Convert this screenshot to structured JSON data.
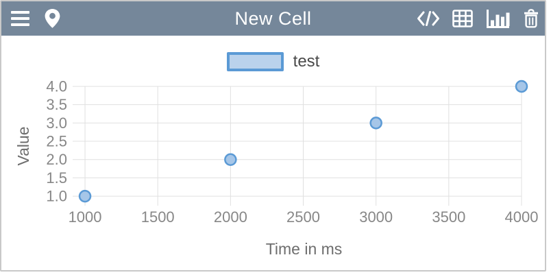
{
  "header": {
    "title": "New Cell",
    "background": "#75879A",
    "icon_color": "#ffffff",
    "left_icons": [
      {
        "name": "menu-icon"
      },
      {
        "name": "location-pin-icon"
      }
    ],
    "right_icons": [
      {
        "name": "code-icon"
      },
      {
        "name": "table-icon"
      },
      {
        "name": "bar-chart-icon"
      },
      {
        "name": "trash-icon"
      }
    ]
  },
  "legend": {
    "label": "test",
    "swatch_fill": "#bad2ec",
    "swatch_border": "#5b9ad5"
  },
  "chart_data": {
    "type": "scatter",
    "title": "",
    "xlabel": "Time in ms",
    "ylabel": "Value",
    "series": [
      {
        "name": "test",
        "x": [
          1000,
          2000,
          3000,
          4000
        ],
        "y": [
          1.0,
          2.0,
          3.0,
          4.0
        ]
      }
    ],
    "x_ticks": [
      1000,
      1500,
      2000,
      2500,
      3000,
      3500,
      4000
    ],
    "x_tick_labels": [
      "1000",
      "1500",
      "2000",
      "2500",
      "3000",
      "3500",
      "4000"
    ],
    "y_ticks": [
      1.0,
      1.5,
      2.0,
      2.5,
      3.0,
      3.5,
      4.0
    ],
    "y_tick_labels": [
      "1.0",
      "1.5",
      "2.0",
      "2.5",
      "3.0",
      "3.5",
      "4.0"
    ],
    "xlim": [
      915,
      4000
    ],
    "ylim": [
      0.74,
      4.0
    ],
    "grid": true,
    "legend_position": "top",
    "marker": {
      "shape": "circle",
      "radius": 8,
      "fill": "#a6c6e8",
      "stroke": "#5b9ad5",
      "stroke_width": 2.5
    },
    "colors": {
      "grid": "#e0e0e0",
      "tick_label": "#878787",
      "axis_label": "#6e6e6e"
    }
  }
}
